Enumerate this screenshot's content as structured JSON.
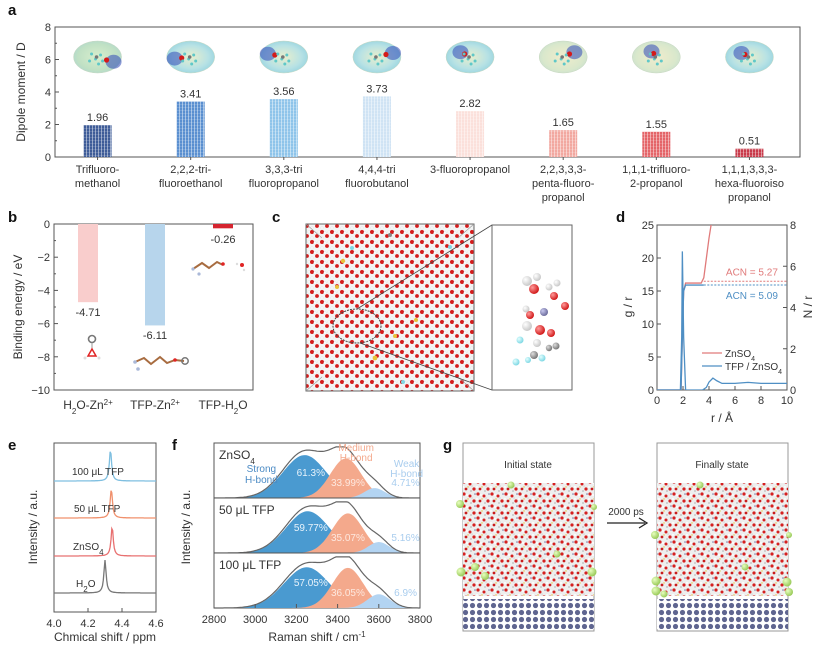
{
  "chart_data": [
    {
      "panel": "a",
      "type": "bar",
      "title": "",
      "xlabel": "",
      "ylabel": "Dipole moment / D",
      "ylim": [
        0,
        8
      ],
      "yticks": [
        0,
        2,
        4,
        6,
        8
      ],
      "categories": [
        [
          "Trifluoro-",
          "methanol"
        ],
        [
          "2,2,2-tri-",
          "fluoroethanol"
        ],
        [
          "3,3,3-tri",
          "fluoropropanol"
        ],
        [
          "4,4,4-tri",
          "fluorobutanol"
        ],
        [
          "3-fluoropropanol"
        ],
        [
          "2,2,3,3,3-",
          "penta-fluoro-",
          "propanol"
        ],
        [
          "1,1,1-trifluoro-",
          "2-propanol"
        ],
        [
          "1,1,1,3,3,3-",
          "hexa-fluoroiso",
          "propanol"
        ]
      ],
      "values": [
        1.96,
        3.41,
        3.56,
        3.73,
        2.82,
        1.65,
        1.55,
        0.51
      ],
      "value_labels": [
        "1.96",
        "3.41",
        "3.56",
        "3.73",
        "2.82",
        "1.65",
        "1.55",
        "0.51"
      ],
      "colors": [
        "#3e5c98",
        "#5a8fd0",
        "#8ec4ea",
        "#cfe3f4",
        "#fbe0db",
        "#f2a8a0",
        "#e46468",
        "#c83a4a"
      ],
      "annotations": "electrostatic potential molecular surface above each bar"
    },
    {
      "panel": "b",
      "type": "bar",
      "xlabel": "",
      "ylabel": "Binding energy / eV",
      "ylim": [
        -10,
        0
      ],
      "yticks": [
        0,
        -2,
        -4,
        -6,
        -8,
        -10
      ],
      "categories": [
        "H2O-Zn2+",
        "TFP-Zn2+",
        "TFP-H2O"
      ],
      "category_labels": [
        {
          "main": "H",
          "sub": "2",
          "rest": "O-Zn",
          "sup": "2+"
        },
        {
          "main": "TFP-Zn",
          "sup": "2+"
        },
        {
          "main": "TFP-H",
          "sub": "2",
          "rest": "O"
        }
      ],
      "values": [
        -4.71,
        -6.11,
        -0.26
      ],
      "value_labels": [
        "-4.71",
        "-6.11",
        "-0.26"
      ],
      "colors": [
        "#f9cdcc",
        "#b7d5ec",
        "#d5242f"
      ]
    },
    {
      "panel": "d",
      "type": "line",
      "xlabel": "r / Å",
      "ylabel_left": "g / r",
      "ylabel_right": "N / r",
      "xlim": [
        0,
        10
      ],
      "ylim_left": [
        0,
        25
      ],
      "ylim_right": [
        0,
        8
      ],
      "xticks": [
        0,
        2,
        4,
        6,
        8,
        10
      ],
      "yticks_left": [
        0,
        5,
        10,
        15,
        20,
        25
      ],
      "yticks_right": [
        0,
        2,
        4,
        6,
        8
      ],
      "legend": [
        "ZnSO4",
        "TFP / ZnSO4"
      ],
      "legend_placement": "lower-right",
      "series": [
        {
          "name": "ZnSO4",
          "color": "#e07a7a",
          "kind": "N(r)",
          "x": [
            0,
            1.85,
            1.95,
            2.05,
            2.2,
            3.4,
            3.6,
            3.8,
            4.0,
            4.2
          ],
          "y": [
            0,
            0,
            8,
            15,
            16.2,
            16.2,
            17,
            20,
            23,
            25.5
          ]
        },
        {
          "name": "TFP / ZnSO4",
          "color": "#4f8fc4",
          "kind": "g(r)",
          "x": [
            0,
            1.8,
            1.9,
            1.95,
            2.05,
            2.2,
            3.5,
            3.8,
            4.0,
            4.3,
            4.6,
            5.0,
            6.0,
            7.0,
            8.0,
            9.0,
            10.0
          ],
          "y": [
            0,
            0,
            8,
            21,
            8,
            0,
            0,
            0.4,
            1.2,
            1.8,
            1.4,
            1.0,
            1.0,
            1.15,
            1.0,
            1.0,
            1.0
          ]
        },
        {
          "name": "TFP / ZnSO4 N(r)",
          "color": "#4f8fc4",
          "kind": "N(r)",
          "x": [
            0,
            1.85,
            1.95,
            2.05,
            2.2,
            3.6
          ],
          "y": [
            0,
            0,
            8,
            15,
            15.9,
            15.9
          ]
        }
      ],
      "acn_lines": [
        {
          "label": "ACN = 5.27",
          "value_right_axis": 5.27,
          "color": "#e07a7a",
          "x_from": 3.6
        },
        {
          "label": "ACN = 5.09",
          "value_right_axis": 5.09,
          "color": "#4f8fc4",
          "x_from": 3.6
        }
      ]
    },
    {
      "panel": "e",
      "type": "line",
      "xlabel": "Chmical shift / ppm",
      "ylabel": "Intensity / a.u.",
      "xlim": [
        4.0,
        4.6
      ],
      "xticks": [
        "4.0",
        "4.2",
        "4.4",
        "4.6"
      ],
      "series": [
        {
          "name": "100 μL TFP",
          "color": "#7fbfe0",
          "peak_ppm": 4.332
        },
        {
          "name": "50 μL TFP",
          "color": "#f0906c",
          "peak_ppm": 4.337
        },
        {
          "name": "ZnSO4",
          "color": "#e87070",
          "peak_ppm": 4.342
        },
        {
          "name": "H2O",
          "color": "#777777",
          "peak_ppm": 4.3
        }
      ]
    },
    {
      "panel": "f",
      "type": "area",
      "xlabel": "Raman shift / cm-1",
      "ylabel": "Intensity / a.u.",
      "xlim": [
        2800,
        3800
      ],
      "xticks": [
        2800,
        3000,
        3200,
        3400,
        3600,
        3800
      ],
      "component_labels": {
        "strong": [
          "Strong",
          "H-bond"
        ],
        "medium": [
          "Medium",
          "H-bond"
        ],
        "weak": [
          "Weak",
          "H-bond"
        ]
      },
      "component_colors": {
        "strong": "#4a9ad0",
        "medium": "#f4a98c",
        "weak": "#b3d4f2"
      },
      "series": [
        {
          "name": "ZnSO4",
          "strong": "61.3%",
          "medium": "33.99%",
          "weak": "4.71%"
        },
        {
          "name": "50 μL TFP",
          "strong": "59.77%",
          "medium": "35.07%",
          "weak": "5.16%"
        },
        {
          "name": "100 μL TFP",
          "strong": "57.05%",
          "medium": "36.05%",
          "weak": "6.9%"
        }
      ]
    }
  ],
  "panels": {
    "a": "a",
    "b": "b",
    "c": "c",
    "d": "d",
    "e": "e",
    "f": "f",
    "g": "g"
  },
  "panel_c": {
    "description": "MD simulation box with zoom-in of Zn2+ solvation structure"
  },
  "panel_g": {
    "initial_label": "Initial state",
    "final_label": "Finally state",
    "arrow_label": "2000 ps"
  }
}
